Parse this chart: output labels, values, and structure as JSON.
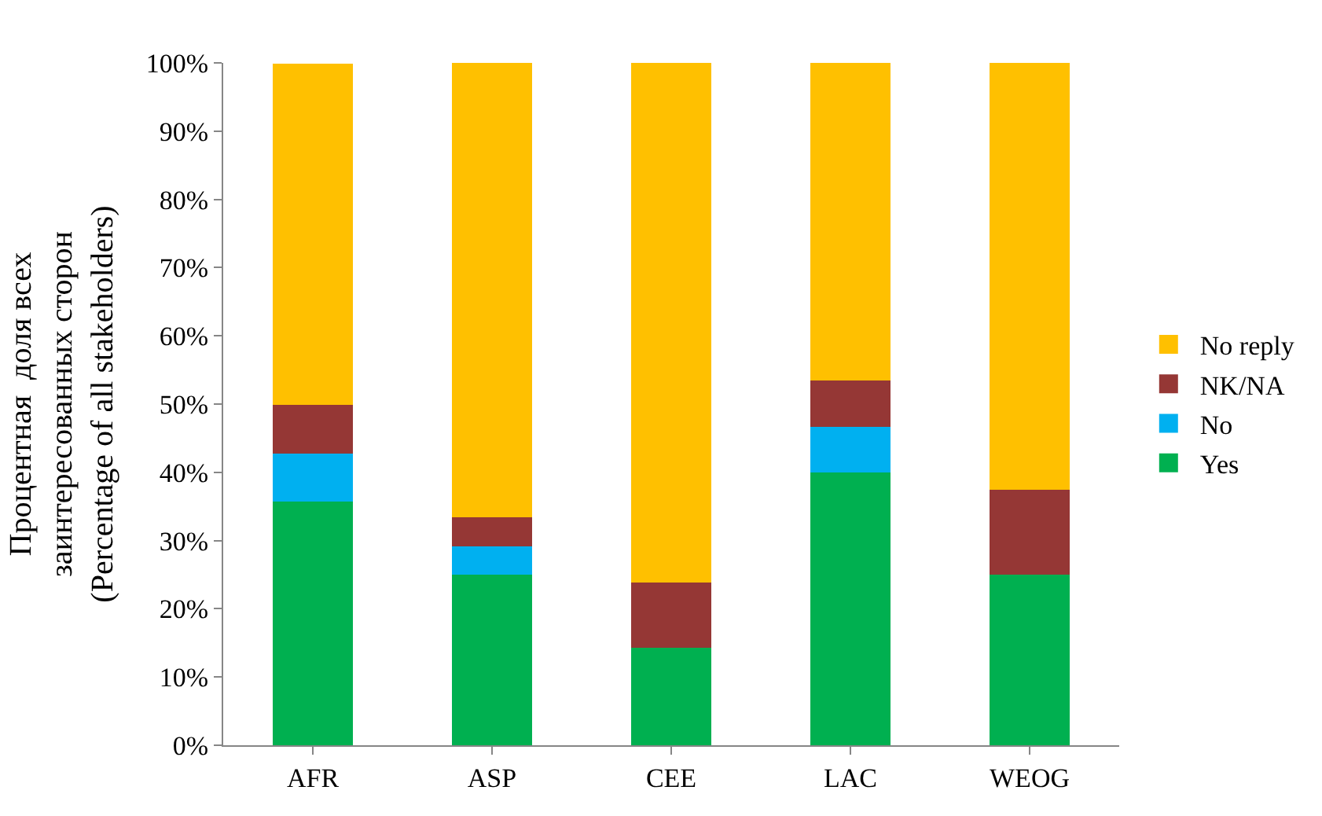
{
  "chart_data": {
    "type": "bar",
    "stacked": true,
    "ylabel": "Процентная  доля всех\nзаинтересованных сторон\n(Percentage of all stakeholders)",
    "categories": [
      "AFR",
      "ASP",
      "CEE",
      "LAC",
      "WEOG"
    ],
    "series": [
      {
        "name": "Yes",
        "color": "#00b050",
        "values": [
          35.7,
          25,
          14.3,
          40,
          25
        ]
      },
      {
        "name": "No",
        "color": "#00b0f0",
        "values": [
          7.1,
          4.2,
          0,
          6.7,
          0
        ]
      },
      {
        "name": "NK/NA",
        "color": "#953735",
        "values": [
          7.1,
          4.2,
          9.5,
          6.7,
          12.5
        ]
      },
      {
        "name": "No reply",
        "color": "#ffc000",
        "values": [
          50.0,
          66.6,
          76.2,
          46.6,
          62.5
        ]
      }
    ],
    "ylim": [
      0,
      100
    ],
    "yticks": [
      {
        "value": 0,
        "label": "0%"
      },
      {
        "value": 10,
        "label": "10%"
      },
      {
        "value": 20,
        "label": "20%"
      },
      {
        "value": 30,
        "label": "30%"
      },
      {
        "value": 40,
        "label": "40%"
      },
      {
        "value": 50,
        "label": "50%"
      },
      {
        "value": 60,
        "label": "60%"
      },
      {
        "value": 70,
        "label": "70%"
      },
      {
        "value": 80,
        "label": "80%"
      },
      {
        "value": 90,
        "label": "90%"
      },
      {
        "value": 100,
        "label": "100%"
      }
    ],
    "legend": "right"
  }
}
